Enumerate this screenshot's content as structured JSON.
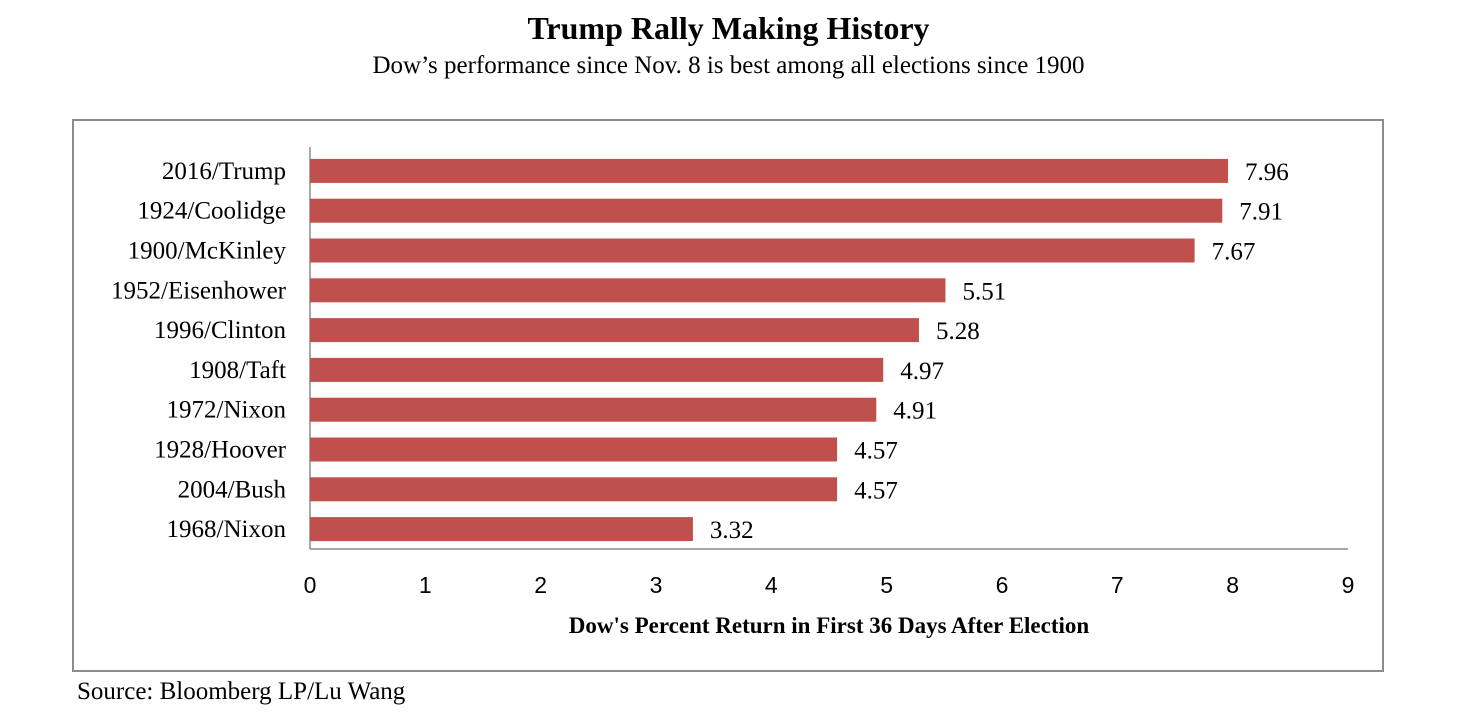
{
  "header": {
    "title": "Trump Rally Making History",
    "subtitle": "Dow’s performance since Nov. 8 is best among all elections since 1900"
  },
  "footer": {
    "source": "Source: Bloomberg LP/Lu Wang"
  },
  "colors": {
    "bar": "#c0504d",
    "axis": "#8c8c8c"
  },
  "chart_data": {
    "type": "bar",
    "orientation": "horizontal",
    "categories": [
      "2016/Trump",
      "1924/Coolidge",
      "1900/McKinley",
      "1952/Eisenhower",
      "1996/Clinton",
      "1908/Taft",
      "1972/Nixon",
      "1928/Hoover",
      "2004/Bush",
      "1968/Nixon"
    ],
    "values": [
      7.96,
      7.91,
      7.67,
      5.51,
      5.28,
      4.97,
      4.91,
      4.57,
      4.57,
      3.32
    ],
    "value_labels": [
      "7.96",
      "7.91",
      "7.67",
      "5.51",
      "5.28",
      "4.97",
      "4.91",
      "4.57",
      "4.57",
      "3.32"
    ],
    "xlabel": "Dow's Percent Return in First 36 Days After Election",
    "ylabel": "",
    "xlim": [
      0,
      9
    ],
    "xticks": [
      "0",
      "1",
      "2",
      "3",
      "4",
      "5",
      "6",
      "7",
      "8",
      "9"
    ],
    "grid": false,
    "legend": "none"
  }
}
